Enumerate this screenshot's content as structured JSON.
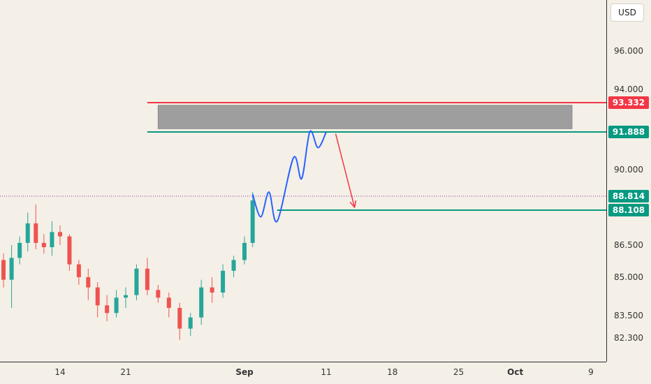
{
  "currency": "USD",
  "colors": {
    "background": "#f4f0e7",
    "up": "#26a69a",
    "down": "#ef5350",
    "resistance": "#f23645",
    "support": "#089981",
    "zone": "#9e9e9e",
    "projection": "#2962ff",
    "arrow": "#f23645",
    "current_price": "#9c27b0"
  },
  "chart_data": {
    "type": "candlestick",
    "title": "",
    "xlabel": "",
    "ylabel": "",
    "x_ticks": [
      {
        "date": "2023-08-14",
        "label": "14"
      },
      {
        "date": "2023-08-21",
        "label": "21"
      },
      {
        "date": "2023-09-01",
        "label": "Sep"
      },
      {
        "date": "2023-09-11",
        "label": "11"
      },
      {
        "date": "2023-09-18",
        "label": "18"
      },
      {
        "date": "2023-09-25",
        "label": "25"
      },
      {
        "date": "2023-10-01",
        "label": "Oct"
      },
      {
        "date": "2023-10-09",
        "label": "9"
      }
    ],
    "y_ticks": [
      "96.000",
      "94.000",
      "90.000",
      "86.500",
      "85.000",
      "83.500",
      "82.300"
    ],
    "price_tags": [
      {
        "label": "93.332",
        "value": 93.332,
        "color": "#f23645"
      },
      {
        "label": "91.888",
        "value": 91.888,
        "color": "#089981"
      },
      {
        "label": "88.814",
        "value": 88.814,
        "color": "#089981"
      },
      {
        "label": "88.108",
        "value": 88.108,
        "color": "#089981"
      }
    ],
    "levels": {
      "resistance": 93.332,
      "support_zone_bottom": 91.888,
      "current_price": 88.814,
      "target": 88.108
    },
    "drawings": {
      "supply_zone": {
        "start": "2023-08-24",
        "end": "2023-10-07",
        "low": 92.05,
        "high": 93.2
      },
      "projection_path": [
        {
          "date": "2023-09-02",
          "price": 88.9
        },
        {
          "date": "2023-09-03",
          "price": 87.8
        },
        {
          "date": "2023-09-04",
          "price": 89.0
        },
        {
          "date": "2023-09-05",
          "price": 87.6
        },
        {
          "date": "2023-09-07",
          "price": 90.6
        },
        {
          "date": "2023-09-08",
          "price": 89.6
        },
        {
          "date": "2023-09-09",
          "price": 91.9
        },
        {
          "date": "2023-09-10",
          "price": 91.1
        },
        {
          "date": "2023-09-11",
          "price": 91.888
        }
      ],
      "target_arrow": {
        "from_date": "2023-09-12",
        "from_price": 91.8,
        "to_date": "2023-09-14",
        "to_price": 88.25
      }
    },
    "candles": [
      {
        "date": "2023-08-07",
        "o": 85.8,
        "h": 86.1,
        "l": 84.6,
        "c": 84.9
      },
      {
        "date": "2023-08-08",
        "o": 84.9,
        "h": 86.5,
        "l": 83.8,
        "c": 85.9
      },
      {
        "date": "2023-08-09",
        "o": 85.9,
        "h": 86.9,
        "l": 85.6,
        "c": 86.6
      },
      {
        "date": "2023-08-10",
        "o": 86.6,
        "h": 88.0,
        "l": 86.2,
        "c": 87.5
      },
      {
        "date": "2023-08-11",
        "o": 87.5,
        "h": 88.4,
        "l": 86.3,
        "c": 86.6
      },
      {
        "date": "2023-08-12",
        "o": 86.6,
        "h": 87.0,
        "l": 86.1,
        "c": 86.4
      },
      {
        "date": "2023-08-13",
        "o": 86.4,
        "h": 87.6,
        "l": 86.0,
        "c": 87.1
      },
      {
        "date": "2023-08-14",
        "o": 87.1,
        "h": 87.4,
        "l": 86.5,
        "c": 86.9
      },
      {
        "date": "2023-08-15",
        "o": 86.9,
        "h": 87.0,
        "l": 85.3,
        "c": 85.6
      },
      {
        "date": "2023-08-16",
        "o": 85.6,
        "h": 85.8,
        "l": 84.7,
        "c": 85.0
      },
      {
        "date": "2023-08-17",
        "o": 85.0,
        "h": 85.4,
        "l": 84.1,
        "c": 84.6
      },
      {
        "date": "2023-08-18",
        "o": 84.6,
        "h": 84.8,
        "l": 83.4,
        "c": 83.9
      },
      {
        "date": "2023-08-19",
        "o": 83.9,
        "h": 84.3,
        "l": 83.2,
        "c": 83.6
      },
      {
        "date": "2023-08-20",
        "o": 83.6,
        "h": 84.5,
        "l": 83.4,
        "c": 84.2
      },
      {
        "date": "2023-08-21",
        "o": 84.2,
        "h": 84.6,
        "l": 83.8,
        "c": 84.3
      },
      {
        "date": "2023-08-22",
        "o": 84.3,
        "h": 85.6,
        "l": 84.1,
        "c": 85.4
      },
      {
        "date": "2023-08-23",
        "o": 85.4,
        "h": 85.9,
        "l": 84.3,
        "c": 84.5
      },
      {
        "date": "2023-08-24",
        "o": 84.5,
        "h": 84.7,
        "l": 84.0,
        "c": 84.2
      },
      {
        "date": "2023-08-25",
        "o": 84.2,
        "h": 84.4,
        "l": 83.4,
        "c": 83.8
      },
      {
        "date": "2023-08-26",
        "o": 83.8,
        "h": 84.0,
        "l": 82.2,
        "c": 82.8
      },
      {
        "date": "2023-08-27",
        "o": 82.8,
        "h": 83.6,
        "l": 82.4,
        "c": 83.4
      },
      {
        "date": "2023-08-28",
        "o": 83.4,
        "h": 84.9,
        "l": 83.0,
        "c": 84.6
      },
      {
        "date": "2023-08-29",
        "o": 84.6,
        "h": 85.0,
        "l": 84.0,
        "c": 84.4
      },
      {
        "date": "2023-08-30",
        "o": 84.4,
        "h": 85.6,
        "l": 84.2,
        "c": 85.3
      },
      {
        "date": "2023-08-31",
        "o": 85.3,
        "h": 86.0,
        "l": 85.0,
        "c": 85.8
      },
      {
        "date": "2023-09-01",
        "o": 85.8,
        "h": 86.9,
        "l": 85.6,
        "c": 86.6
      },
      {
        "date": "2023-09-02",
        "o": 86.6,
        "h": 89.0,
        "l": 86.4,
        "c": 88.6
      }
    ]
  }
}
